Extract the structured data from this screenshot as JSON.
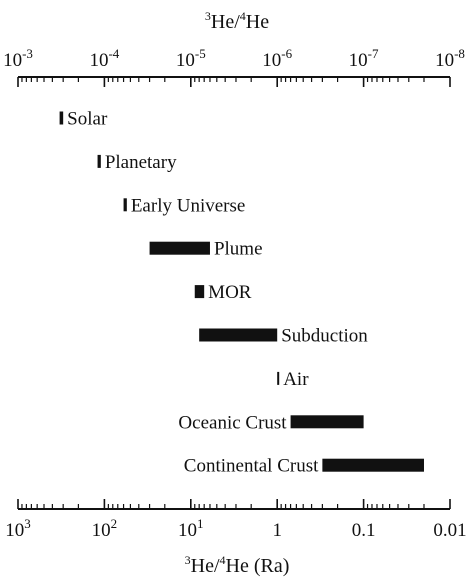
{
  "chart_data": {
    "type": "bar",
    "subtype": "floating-range",
    "top_axis": {
      "title_sup1": "3",
      "title_mid": "He/",
      "title_sup2": "4",
      "title_end": "He",
      "scale": "log",
      "direction": "decreasing-left-to-right",
      "range": [
        0.001,
        1e-08
      ],
      "tick_labels": [
        {
          "base": "10",
          "exp": "-3",
          "value": 0.001
        },
        {
          "base": "10",
          "exp": "-4",
          "value": 0.0001
        },
        {
          "base": "10",
          "exp": "-5",
          "value": 1e-05
        },
        {
          "base": "10",
          "exp": "-6",
          "value": 1e-06
        },
        {
          "base": "10",
          "exp": "-7",
          "value": 1e-07
        },
        {
          "base": "10",
          "exp": "-8",
          "value": 1e-08
        }
      ]
    },
    "bottom_axis": {
      "title_sup1": "3",
      "title_mid": "He/",
      "title_sup2": "4",
      "title_end": "He (Ra)",
      "scale": "log",
      "direction": "decreasing-left-to-right",
      "range": [
        1000,
        0.01
      ],
      "tick_labels": [
        {
          "base": "10",
          "exp": "3",
          "text": "",
          "value": 1000
        },
        {
          "base": "10",
          "exp": "2",
          "text": "",
          "value": 100
        },
        {
          "base": "10",
          "exp": "1",
          "text": "",
          "value": 10
        },
        {
          "base": "",
          "exp": "",
          "text": "1",
          "value": 1
        },
        {
          "base": "",
          "exp": "",
          "text": "0.1",
          "value": 0.1
        },
        {
          "base": "",
          "exp": "",
          "text": "0.01",
          "value": 0.01
        }
      ]
    },
    "categories": [
      "Solar",
      "Planetary",
      "Early Universe",
      "Plume",
      "MOR",
      "Subduction",
      "Air",
      "Oceanic Crust",
      "Continental Crust"
    ],
    "series": [
      {
        "ranges_ra": [
          [
            330,
            300
          ],
          [
            120,
            110
          ],
          [
            60,
            55
          ],
          [
            30,
            6
          ],
          [
            9,
            7
          ],
          [
            8,
            1
          ],
          [
            1,
            0.98
          ],
          [
            0.7,
            0.1
          ],
          [
            0.3,
            0.02
          ]
        ]
      }
    ],
    "label_side": [
      "right",
      "right",
      "right",
      "right",
      "right",
      "right",
      "right",
      "left",
      "left"
    ],
    "bar_color": "#111111",
    "grid": false,
    "legend": "none"
  }
}
